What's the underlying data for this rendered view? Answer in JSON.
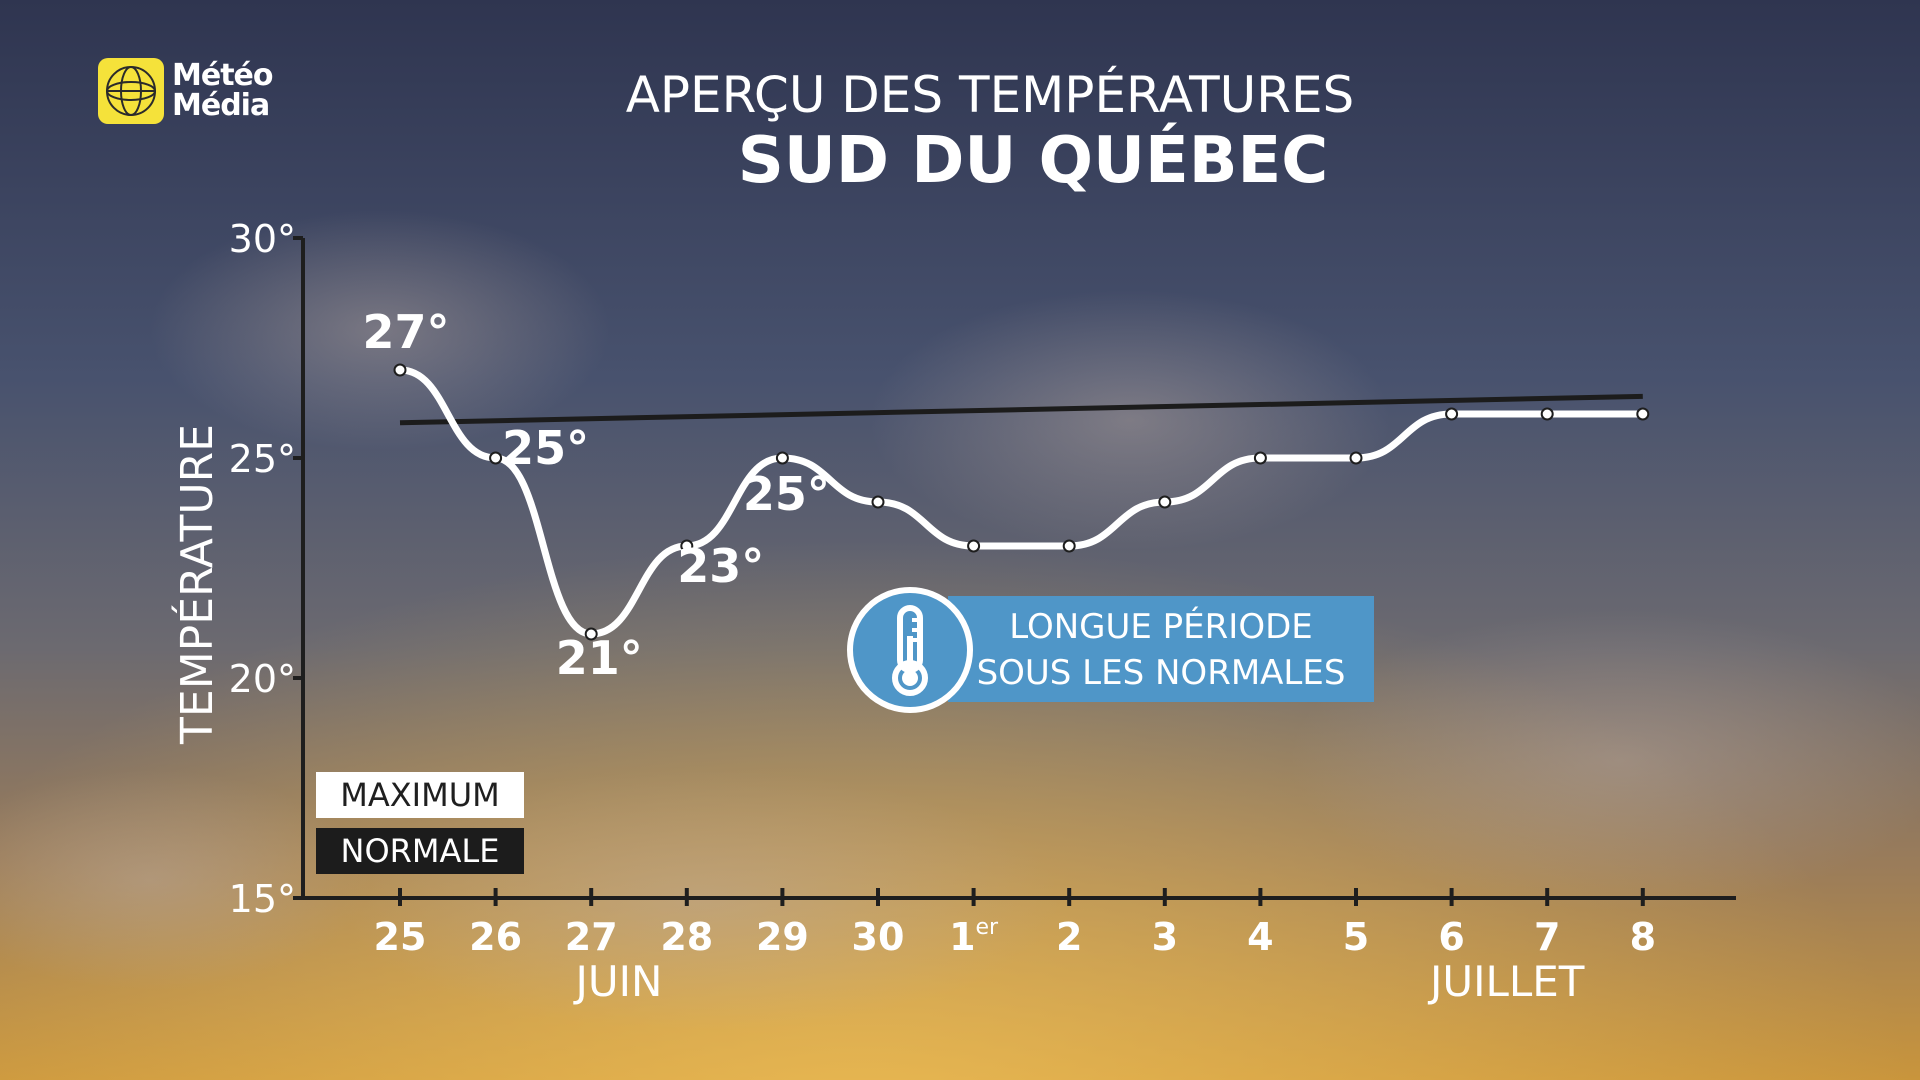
{
  "brand": {
    "logo_line1": "Météo",
    "logo_line2": "Média",
    "accent_color": "#f5e23a"
  },
  "header": {
    "title": "APERÇU DES TEMPÉRATURES",
    "subtitle": "SUD DU QUÉBEC"
  },
  "legend": {
    "maximum_label": "MAXIMUM",
    "normal_label": "NORMALE"
  },
  "callout": {
    "icon": "thermometer-icon",
    "line1": "LONGUE PÉRIODE",
    "line2": "SOUS LES NORMALES",
    "color": "#4f96c8"
  },
  "chart_data": {
    "type": "line",
    "title": "APERÇU DES TEMPÉRATURES",
    "subtitle": "SUD DU QUÉBEC",
    "ylabel": "TEMPÉRATURE",
    "xlabel": "",
    "ylim": [
      15,
      30
    ],
    "y_ticks": [
      {
        "value": 15,
        "label": "15°"
      },
      {
        "value": 20,
        "label": "20°"
      },
      {
        "value": 25,
        "label": "25°"
      },
      {
        "value": 30,
        "label": "30°"
      }
    ],
    "categories": [
      "25",
      "26",
      "27",
      "28",
      "29",
      "30",
      "1er",
      "2",
      "3",
      "4",
      "5",
      "6",
      "7",
      "8"
    ],
    "month_labels": [
      {
        "label": "JUIN",
        "from_index": 0,
        "to_index": 5
      },
      {
        "label": "JUILLET",
        "from_index": 11,
        "to_index": 13
      }
    ],
    "series": [
      {
        "name": "MAXIMUM",
        "color": "#ffffff",
        "values": [
          27,
          25,
          21,
          23,
          25,
          24,
          23,
          23,
          24,
          25,
          25,
          26,
          26,
          26
        ]
      },
      {
        "name": "NORMALE",
        "color": "#1c1c1c",
        "values_start_end": [
          25.8,
          26.4
        ]
      }
    ],
    "data_labels": [
      {
        "index": 0,
        "text": "27°"
      },
      {
        "index": 1,
        "text": "25°"
      },
      {
        "index": 2,
        "text": "21°"
      },
      {
        "index": 3,
        "text": "23°"
      },
      {
        "index": 4,
        "text": "25°"
      }
    ],
    "grid": false,
    "legend_position": "bottom-left"
  }
}
